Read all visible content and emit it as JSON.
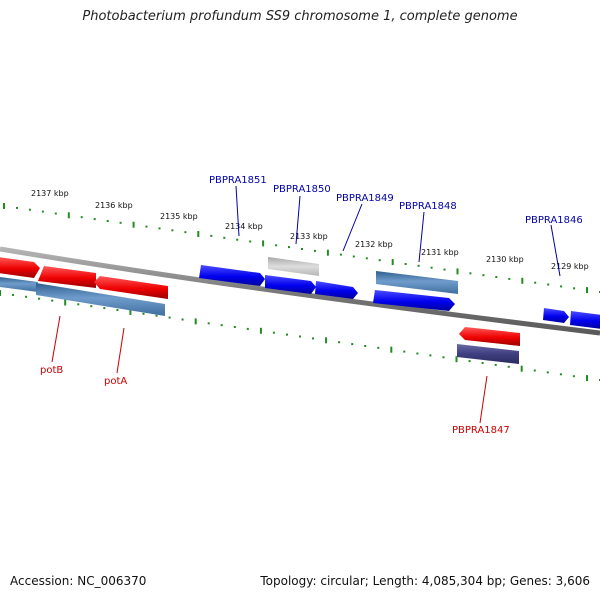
{
  "title": "Photobacterium profundum SS9 chromosome 1, complete genome",
  "footer": {
    "accession": "Accession: NC_006370",
    "topology": "Topology: circular; Length: 4,085,304 bp; Genes: 3,606"
  },
  "colors": {
    "forward_gene": "#0000ee",
    "reverse_gene": "#ee0000",
    "forward_label": "#0000aa",
    "reverse_label": "#cc0000",
    "backbone": "#888888",
    "tick": "#228b22",
    "pseudo_gene": "#c0c0c0",
    "forward_cds_block": "#4a7fb0",
    "reverse_cds_block": "#4b4b88"
  },
  "scale_ticks": [
    "2137 kbp",
    "2136 kbp",
    "2135 kbp",
    "2134 kbp",
    "2133 kbp",
    "2132 kbp",
    "2131 kbp",
    "2130 kbp",
    "2129 kbp"
  ],
  "gene_labels": [
    {
      "name": "PBPRA1851",
      "strand": "forward"
    },
    {
      "name": "PBPRA1850",
      "strand": "forward"
    },
    {
      "name": "PBPRA1849",
      "strand": "forward"
    },
    {
      "name": "PBPRA1848",
      "strand": "forward"
    },
    {
      "name": "PBPRA1846",
      "strand": "forward"
    },
    {
      "name": "potB",
      "strand": "reverse"
    },
    {
      "name": "potA",
      "strand": "reverse"
    },
    {
      "name": "PBPRA1847",
      "strand": "reverse"
    }
  ]
}
